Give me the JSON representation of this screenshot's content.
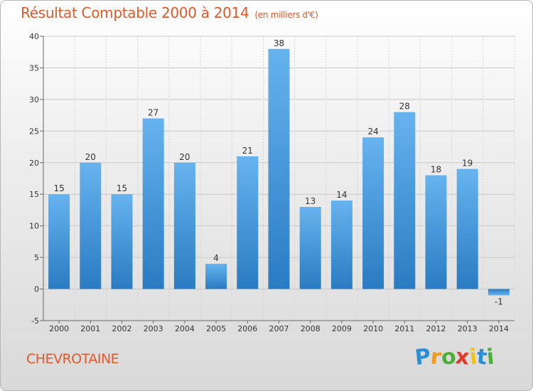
{
  "chart_data": {
    "type": "bar",
    "title": "Résultat Comptable 2000 à 2014",
    "subtitle": "(en milliers d'€)",
    "categories": [
      "2000",
      "2001",
      "2002",
      "2003",
      "2004",
      "2005",
      "2006",
      "2007",
      "2008",
      "2009",
      "2010",
      "2011",
      "2012",
      "2013",
      "2014"
    ],
    "values": [
      15,
      20,
      15,
      27,
      20,
      4,
      21,
      38,
      13,
      14,
      24,
      28,
      18,
      19,
      -1
    ],
    "ylim": [
      -5,
      40
    ],
    "yticks": [
      -5,
      0,
      5,
      10,
      15,
      20,
      25,
      30,
      35,
      40
    ],
    "xlabel": "",
    "ylabel": "",
    "grid": true,
    "bar_color": "#3a8fd8"
  },
  "commune": "CHEVROTAINE",
  "logo": {
    "letters": [
      "P",
      "r",
      "o",
      "x",
      "i",
      "t",
      "i"
    ],
    "colors": [
      "#2a8fd6",
      "#f29a1c",
      "#4fae3a",
      "#e23a2a",
      "#f2c21c",
      "#2a8fd6",
      "#4fae3a"
    ]
  }
}
